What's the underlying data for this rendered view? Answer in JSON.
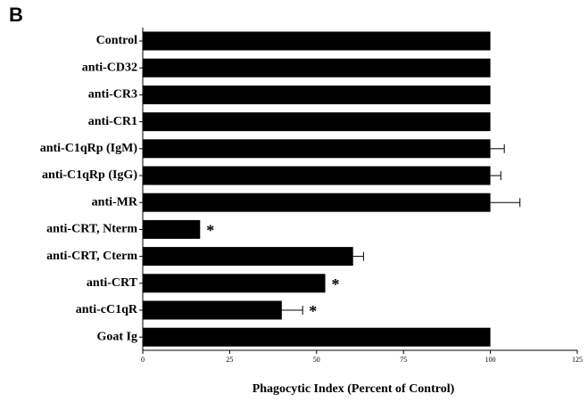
{
  "chart_data": {
    "type": "bar",
    "orientation": "horizontal",
    "panel_label": "B",
    "xlabel": "Phagocytic Index (Percent of Control)",
    "categories": [
      "Control",
      "anti-CD32",
      "anti-CR3",
      "anti-CR1",
      "anti-C1qRp (IgM)",
      "anti-C1qRp (IgG)",
      "anti-MR",
      "anti-CRT, Nterm",
      "anti-CRT, Cterm",
      "anti-CRT",
      "anti-cC1qR",
      "Goat Ig"
    ],
    "values": [
      100,
      100,
      100,
      100,
      100,
      100,
      100,
      16.5,
      60.5,
      52.5,
      40,
      100
    ],
    "errors": [
      null,
      null,
      null,
      null,
      4,
      3,
      8.5,
      null,
      3,
      null,
      6,
      null
    ],
    "markers": [
      null,
      null,
      null,
      null,
      null,
      null,
      null,
      "*",
      null,
      "*",
      "*",
      null
    ],
    "color": "#000000",
    "xlim": [
      0,
      125
    ],
    "xticks": [
      0,
      25,
      50,
      75,
      100,
      125
    ],
    "grid": false
  }
}
